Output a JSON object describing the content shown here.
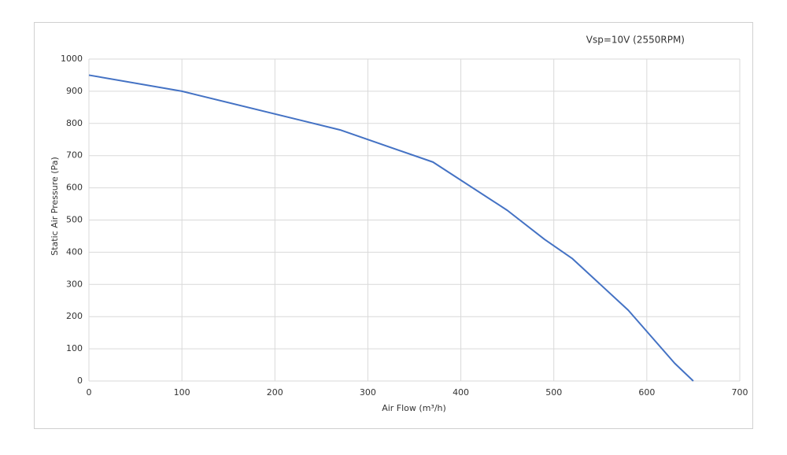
{
  "chart_data": {
    "type": "line",
    "x": [
      0,
      100,
      270,
      370,
      450,
      490,
      520,
      580,
      630,
      650
    ],
    "series": [
      {
        "name": "Vsp=10V (2550RPM)",
        "color": "#4472c4",
        "values": [
          950,
          900,
          780,
          680,
          530,
          440,
          380,
          220,
          55,
          0
        ]
      }
    ],
    "xlabel": "Air Flow (m³/h)",
    "ylabel": "Static Air Pressure (Pa)",
    "xlim": [
      0,
      700
    ],
    "xticks": [
      0,
      100,
      200,
      300,
      400,
      500,
      600,
      700
    ],
    "ylim": [
      0,
      1000
    ],
    "yticks": [
      0,
      100,
      200,
      300,
      400,
      500,
      600,
      700,
      800,
      900,
      1000
    ],
    "grid": true,
    "legend": "top-right"
  }
}
